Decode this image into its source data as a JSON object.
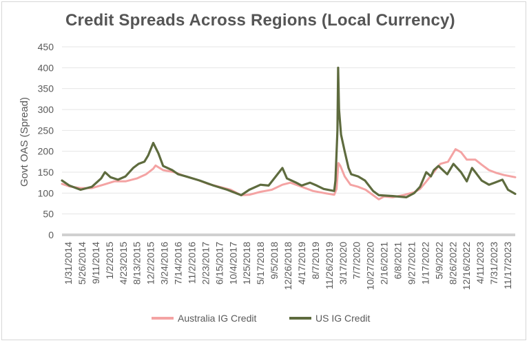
{
  "chart_data": {
    "type": "line",
    "title": "Credit Spreads Across Regions (Local Currency)",
    "ylabel": "Govt OAS (Spread)",
    "xlabel": "",
    "ylim": [
      0,
      450
    ],
    "yticks": [
      0,
      50,
      100,
      150,
      200,
      250,
      300,
      350,
      400,
      450
    ],
    "xlim": [
      "2014-01-31",
      "2024-02-29"
    ],
    "x_tick_labels": [
      "1/31/2014",
      "5/26/2014",
      "9/11/2014",
      "1/2/2015",
      "4/23/2015",
      "8/13/2015",
      "12/2/2015",
      "3/24/2016",
      "7/14/2016",
      "11/2/2016",
      "2/23/2017",
      "6/15/2017",
      "10/4/2017",
      "1/25/2018",
      "5/17/2018",
      "9/5/2018",
      "12/26/2018",
      "4/17/2019",
      "8/7/2019",
      "11/26/2019",
      "3/17/2020",
      "7/7/2020",
      "10/27/2020",
      "2/16/2021",
      "6/8/2021",
      "9/27/2021",
      "1/17/2022",
      "5/9/2022",
      "8/26/2022",
      "12/16/2022",
      "4/11/2023",
      "7/31/2023",
      "11/17/2023"
    ],
    "grid": true,
    "legend_position": "bottom",
    "series": [
      {
        "name": "Australia IG Credit",
        "color": "#f4a3a3",
        "points": [
          [
            "2014-01-31",
            122
          ],
          [
            "2014-04-01",
            116
          ],
          [
            "2014-07-01",
            112
          ],
          [
            "2014-10-01",
            112
          ],
          [
            "2015-01-02",
            120
          ],
          [
            "2015-04-01",
            128
          ],
          [
            "2015-07-01",
            128
          ],
          [
            "2015-10-01",
            135
          ],
          [
            "2015-12-15",
            145
          ],
          [
            "2016-02-10",
            158
          ],
          [
            "2016-03-01",
            166
          ],
          [
            "2016-05-01",
            155
          ],
          [
            "2016-08-01",
            150
          ],
          [
            "2016-11-01",
            140
          ],
          [
            "2017-02-01",
            132
          ],
          [
            "2017-05-01",
            122
          ],
          [
            "2017-08-01",
            115
          ],
          [
            "2017-11-01",
            108
          ],
          [
            "2018-01-25",
            95
          ],
          [
            "2018-04-01",
            96
          ],
          [
            "2018-07-01",
            103
          ],
          [
            "2018-10-01",
            108
          ],
          [
            "2018-12-26",
            120
          ],
          [
            "2019-03-01",
            125
          ],
          [
            "2019-06-01",
            115
          ],
          [
            "2019-09-01",
            105
          ],
          [
            "2019-12-01",
            100
          ],
          [
            "2020-02-20",
            96
          ],
          [
            "2020-03-10",
            110
          ],
          [
            "2020-03-25",
            172
          ],
          [
            "2020-04-10",
            165
          ],
          [
            "2020-05-15",
            140
          ],
          [
            "2020-07-01",
            120
          ],
          [
            "2020-09-01",
            115
          ],
          [
            "2020-11-01",
            108
          ],
          [
            "2021-01-01",
            95
          ],
          [
            "2021-02-16",
            85
          ],
          [
            "2021-04-01",
            92
          ],
          [
            "2021-06-08",
            90
          ],
          [
            "2021-09-01",
            95
          ],
          [
            "2021-12-01",
            102
          ],
          [
            "2022-01-17",
            110
          ],
          [
            "2022-03-01",
            125
          ],
          [
            "2022-05-09",
            150
          ],
          [
            "2022-07-01",
            170
          ],
          [
            "2022-09-01",
            175
          ],
          [
            "2022-11-01",
            205
          ],
          [
            "2022-12-16",
            198
          ],
          [
            "2023-02-01",
            180
          ],
          [
            "2023-04-11",
            180
          ],
          [
            "2023-06-01",
            168
          ],
          [
            "2023-07-31",
            155
          ],
          [
            "2023-10-01",
            148
          ],
          [
            "2023-12-01",
            143
          ],
          [
            "2024-02-29",
            138
          ]
        ]
      },
      {
        "name": "US IG Credit",
        "color": "#5e6b3e",
        "points": [
          [
            "2014-01-31",
            130
          ],
          [
            "2014-04-01",
            118
          ],
          [
            "2014-07-01",
            108
          ],
          [
            "2014-10-01",
            115
          ],
          [
            "2014-12-15",
            135
          ],
          [
            "2015-01-15",
            150
          ],
          [
            "2015-03-01",
            138
          ],
          [
            "2015-05-01",
            132
          ],
          [
            "2015-07-01",
            140
          ],
          [
            "2015-09-01",
            160
          ],
          [
            "2015-10-15",
            170
          ],
          [
            "2015-12-01",
            175
          ],
          [
            "2016-01-01",
            190
          ],
          [
            "2016-02-11",
            220
          ],
          [
            "2016-03-24",
            195
          ],
          [
            "2016-05-01",
            165
          ],
          [
            "2016-07-14",
            155
          ],
          [
            "2016-09-01",
            145
          ],
          [
            "2016-11-02",
            140
          ],
          [
            "2017-02-23",
            130
          ],
          [
            "2017-06-15",
            118
          ],
          [
            "2017-10-04",
            108
          ],
          [
            "2018-01-25",
            95
          ],
          [
            "2018-04-01",
            108
          ],
          [
            "2018-07-01",
            120
          ],
          [
            "2018-09-05",
            118
          ],
          [
            "2018-12-26",
            160
          ],
          [
            "2019-02-01",
            135
          ],
          [
            "2019-04-17",
            125
          ],
          [
            "2019-06-01",
            118
          ],
          [
            "2019-08-07",
            125
          ],
          [
            "2019-10-01",
            118
          ],
          [
            "2019-11-26",
            110
          ],
          [
            "2020-02-20",
            105
          ],
          [
            "2020-03-01",
            130
          ],
          [
            "2020-03-17",
            250
          ],
          [
            "2020-03-23",
            400
          ],
          [
            "2020-03-30",
            300
          ],
          [
            "2020-04-15",
            240
          ],
          [
            "2020-05-15",
            200
          ],
          [
            "2020-06-15",
            160
          ],
          [
            "2020-07-07",
            145
          ],
          [
            "2020-09-01",
            140
          ],
          [
            "2020-10-27",
            130
          ],
          [
            "2021-01-01",
            105
          ],
          [
            "2021-02-16",
            95
          ],
          [
            "2021-06-08",
            93
          ],
          [
            "2021-09-27",
            90
          ],
          [
            "2021-12-01",
            100
          ],
          [
            "2022-01-17",
            115
          ],
          [
            "2022-03-08",
            150
          ],
          [
            "2022-04-15",
            140
          ],
          [
            "2022-05-09",
            155
          ],
          [
            "2022-06-15",
            165
          ],
          [
            "2022-08-26",
            145
          ],
          [
            "2022-10-15",
            170
          ],
          [
            "2022-12-16",
            150
          ],
          [
            "2023-02-01",
            128
          ],
          [
            "2023-03-15",
            160
          ],
          [
            "2023-04-11",
            150
          ],
          [
            "2023-06-01",
            130
          ],
          [
            "2023-07-31",
            120
          ],
          [
            "2023-09-15",
            125
          ],
          [
            "2023-11-17",
            132
          ],
          [
            "2024-01-01",
            108
          ],
          [
            "2024-02-29",
            98
          ]
        ]
      }
    ]
  }
}
